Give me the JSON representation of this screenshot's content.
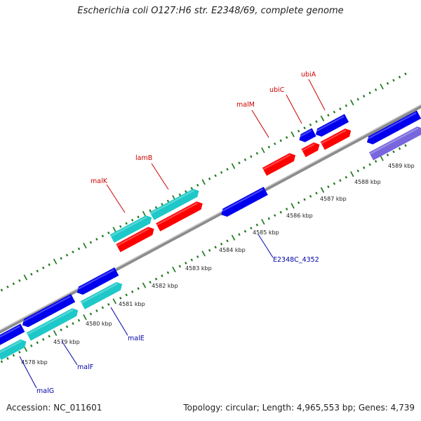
{
  "title": "Escherichia coli O127:H6 str. E2348/69, complete genome",
  "footer": {
    "accession": "Accession: NC_011601",
    "summary": "Topology: circular; Length: 4,965,553 bp; Genes: 4,739"
  },
  "colors": {
    "backbone": "#8c8c8c",
    "tick": "#1f7a1f",
    "gene_forward": "#ff0000",
    "gene_reverse": "#0000ee",
    "gene_cyan": "#1ec8c8",
    "gene_purple": "#7766dd",
    "label_red": "#cc0000",
    "label_blue": "#0000aa"
  },
  "kbp_labels": [
    "4578 kbp",
    "4579 kbp",
    "4580 kbp",
    "4581 kbp",
    "4582 kbp",
    "4583 kbp",
    "4584 kbp",
    "4585 kbp",
    "4586 kbp",
    "4587 kbp",
    "4588 kbp",
    "4589 kbp"
  ],
  "gene_labels_top": [
    "malK",
    "lamB",
    "malM",
    "ubiC",
    "ubiA"
  ],
  "gene_labels_bottom": [
    "malG",
    "malF",
    "malE",
    "E2348C_4352"
  ]
}
